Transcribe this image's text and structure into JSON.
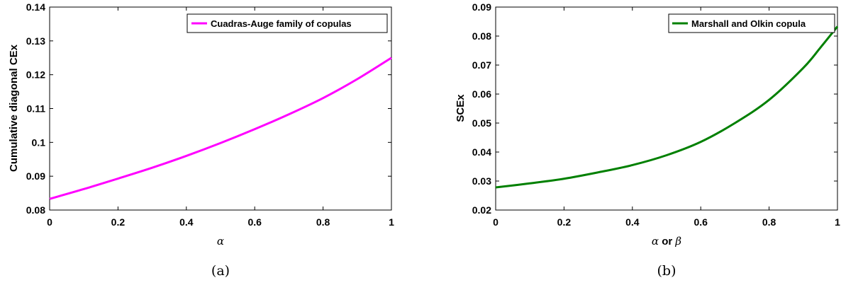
{
  "chart_data": [
    {
      "type": "line",
      "color": "#ff00ff",
      "ylabel": "Cumulative diagonal CEx",
      "xlabel_symbol": "α",
      "legend": {
        "label": "Cuadras-Auge family of copulas",
        "position": "top-right"
      },
      "caption": "(a)",
      "xlim": [
        0,
        1
      ],
      "ylim": [
        0.08,
        0.14
      ],
      "x_ticks": [
        0,
        0.2,
        0.4,
        0.6,
        0.8,
        1
      ],
      "y_ticks": [
        0.08,
        0.09,
        0.1,
        0.11,
        0.12,
        0.13,
        0.14
      ],
      "x_tick_labels": [
        "0",
        "0.2",
        "0.4",
        "0.6",
        "0.8",
        "1"
      ],
      "y_tick_labels": [
        "0.08",
        "0.09",
        "0.1",
        "0.11",
        "0.12",
        "0.13",
        "0.14"
      ],
      "series": [
        {
          "x": [
            0,
            0.1,
            0.2,
            0.3,
            0.4,
            0.5,
            0.6,
            0.7,
            0.8,
            0.9,
            1.0
          ],
          "values": [
            0.0833,
            0.0862,
            0.0893,
            0.0925,
            0.096,
            0.0998,
            0.1039,
            0.1083,
            0.1131,
            0.1187,
            0.125
          ]
        }
      ]
    },
    {
      "type": "line",
      "color": "#008000",
      "ylabel": "SCEx",
      "xlabel_symbol_1": "α",
      "xlabel_word": " or ",
      "xlabel_symbol_2": "β",
      "legend": {
        "label": "Marshall and Olkin copula",
        "position": "top-right"
      },
      "caption": "(b)",
      "xlim": [
        0,
        1
      ],
      "ylim": [
        0.02,
        0.09
      ],
      "x_ticks": [
        0,
        0.2,
        0.4,
        0.6,
        0.8,
        1
      ],
      "y_ticks": [
        0.02,
        0.03,
        0.04,
        0.05,
        0.06,
        0.07,
        0.08,
        0.09
      ],
      "x_tick_labels": [
        "0",
        "0.2",
        "0.4",
        "0.6",
        "0.8",
        "1"
      ],
      "y_tick_labels": [
        "0.02",
        "0.03",
        "0.04",
        "0.05",
        "0.06",
        "0.07",
        "0.08",
        "0.09"
      ],
      "series": [
        {
          "x": [
            0,
            0.1,
            0.2,
            0.3,
            0.4,
            0.5,
            0.6,
            0.7,
            0.8,
            0.9,
            0.95,
            1.0
          ],
          "values": [
            0.0278,
            0.0292,
            0.0308,
            0.033,
            0.0355,
            0.0389,
            0.0435,
            0.05,
            0.058,
            0.069,
            0.076,
            0.0833
          ]
        }
      ]
    }
  ]
}
